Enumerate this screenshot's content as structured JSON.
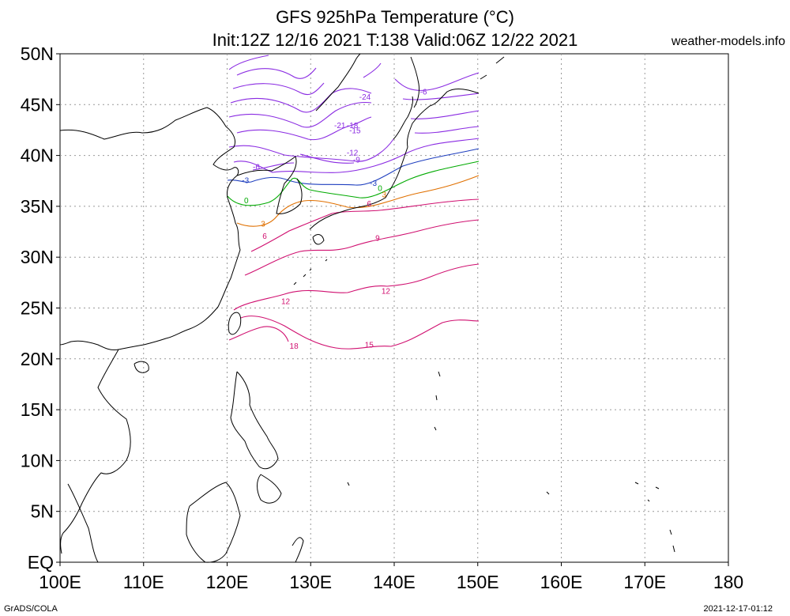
{
  "title": {
    "line1": "GFS 925hPa Temperature (°C)",
    "line2": "Init:12Z 12/16 2021 T:138 Valid:06Z 12/22 2021"
  },
  "site": "weather-models.info",
  "footer": {
    "left": "GrADS/COLA",
    "right": "2021-12-17-01:12"
  },
  "map": {
    "lon_range": [
      100,
      180
    ],
    "lat_range": [
      0,
      50
    ],
    "lon_ticks": [
      "100E",
      "110E",
      "120E",
      "130E",
      "140E",
      "150E",
      "160E",
      "170E",
      "180"
    ],
    "lat_ticks": [
      "50N",
      "45N",
      "40N",
      "35N",
      "30N",
      "25N",
      "20N",
      "15N",
      "10N",
      "5N",
      "EQ"
    ],
    "data_domain_lon": [
      120,
      150
    ],
    "grid": true
  },
  "contours": [
    {
      "value": "-24",
      "color": "#8a2be2",
      "lon": 136.5,
      "lat": 45.5
    },
    {
      "value": "-21",
      "color": "#8a2be2",
      "lon": 133.5,
      "lat": 42.7
    },
    {
      "value": "-18",
      "color": "#8a2be2",
      "lon": 135.0,
      "lat": 42.7
    },
    {
      "value": "-15",
      "color": "#8a2be2",
      "lon": 135.3,
      "lat": 42.2
    },
    {
      "value": "-12",
      "color": "#8a2be2",
      "lon": 135.0,
      "lat": 40.0
    },
    {
      "value": "-9",
      "color": "#8a2be2",
      "lon": 135.5,
      "lat": 39.3
    },
    {
      "value": "-6",
      "color": "#8a2be2",
      "lon": 143.5,
      "lat": 46.0
    },
    {
      "value": "-6",
      "color": "#8a2be2",
      "lon": 123.5,
      "lat": 38.6
    },
    {
      "value": "-3",
      "color": "#1f3fbf",
      "lon": 122.2,
      "lat": 37.3
    },
    {
      "value": "-3",
      "color": "#1f3fbf",
      "lon": 137.5,
      "lat": 37.0
    },
    {
      "value": "0",
      "color": "#00aa00",
      "lon": 122.3,
      "lat": 35.3
    },
    {
      "value": "0",
      "color": "#00aa00",
      "lon": 138.3,
      "lat": 36.5
    },
    {
      "value": "3",
      "color": "#e07000",
      "lon": 124.3,
      "lat": 33.0
    },
    {
      "value": "3",
      "color": "#e07000",
      "lon": 138.8,
      "lat": 35.9
    },
    {
      "value": "6",
      "color": "#d01070",
      "lon": 124.5,
      "lat": 31.8
    },
    {
      "value": "6",
      "color": "#d01070",
      "lon": 137.0,
      "lat": 35.0
    },
    {
      "value": "9",
      "color": "#d01070",
      "lon": 138.0,
      "lat": 31.6
    },
    {
      "value": "12",
      "color": "#d01070",
      "lon": 127.0,
      "lat": 25.4
    },
    {
      "value": "12",
      "color": "#d01070",
      "lon": 139.0,
      "lat": 26.4
    },
    {
      "value": "15",
      "color": "#d01070",
      "lon": 137.0,
      "lat": 21.1
    },
    {
      "value": "18",
      "color": "#d01070",
      "lon": 128.0,
      "lat": 21.0
    }
  ],
  "colors": {
    "grid": "#999999",
    "coast": "#000000",
    "purple": "#8a2be2",
    "blue": "#1f3fbf",
    "green": "#00aa00",
    "orange": "#e07000",
    "magenta": "#d01070"
  }
}
